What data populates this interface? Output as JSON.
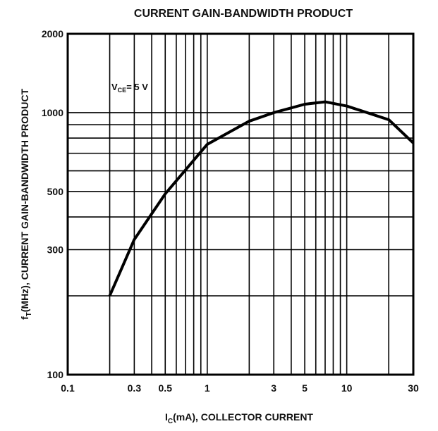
{
  "chart_data": {
    "type": "line",
    "title": "CURRENT GAIN-BANDWIDTH PRODUCT",
    "x_label": [
      "I",
      "C",
      "(mA), COLLECTOR CURRENT"
    ],
    "y_label": [
      "f",
      "T",
      "(MHz), CURRENT GAIN-BANDWIDTH PRODUCT"
    ],
    "annotation": [
      "V",
      "CE",
      "= 5 V"
    ],
    "log_x": true,
    "log_y": true,
    "grid": true,
    "xlim": [
      0.1,
      30
    ],
    "ylim": [
      100,
      2000
    ],
    "xticks": [
      0.1,
      0.3,
      0.5,
      1,
      3,
      5,
      10,
      30
    ],
    "yticks": [
      100,
      300,
      500,
      1000,
      2000
    ],
    "xminor": [
      0.2,
      0.4,
      0.6,
      0.7,
      0.8,
      0.9,
      2,
      4,
      6,
      7,
      8,
      9,
      20
    ],
    "yminor": [
      200,
      400,
      600,
      700,
      800,
      900
    ],
    "series": [
      {
        "color": "#000000",
        "x": [
          0.2,
          0.3,
          0.5,
          1,
          2,
          3,
          5,
          7,
          10,
          20,
          30
        ],
        "values": [
          200,
          328,
          490,
          757,
          928,
          1000,
          1077,
          1100,
          1060,
          940,
          766
        ]
      }
    ]
  }
}
